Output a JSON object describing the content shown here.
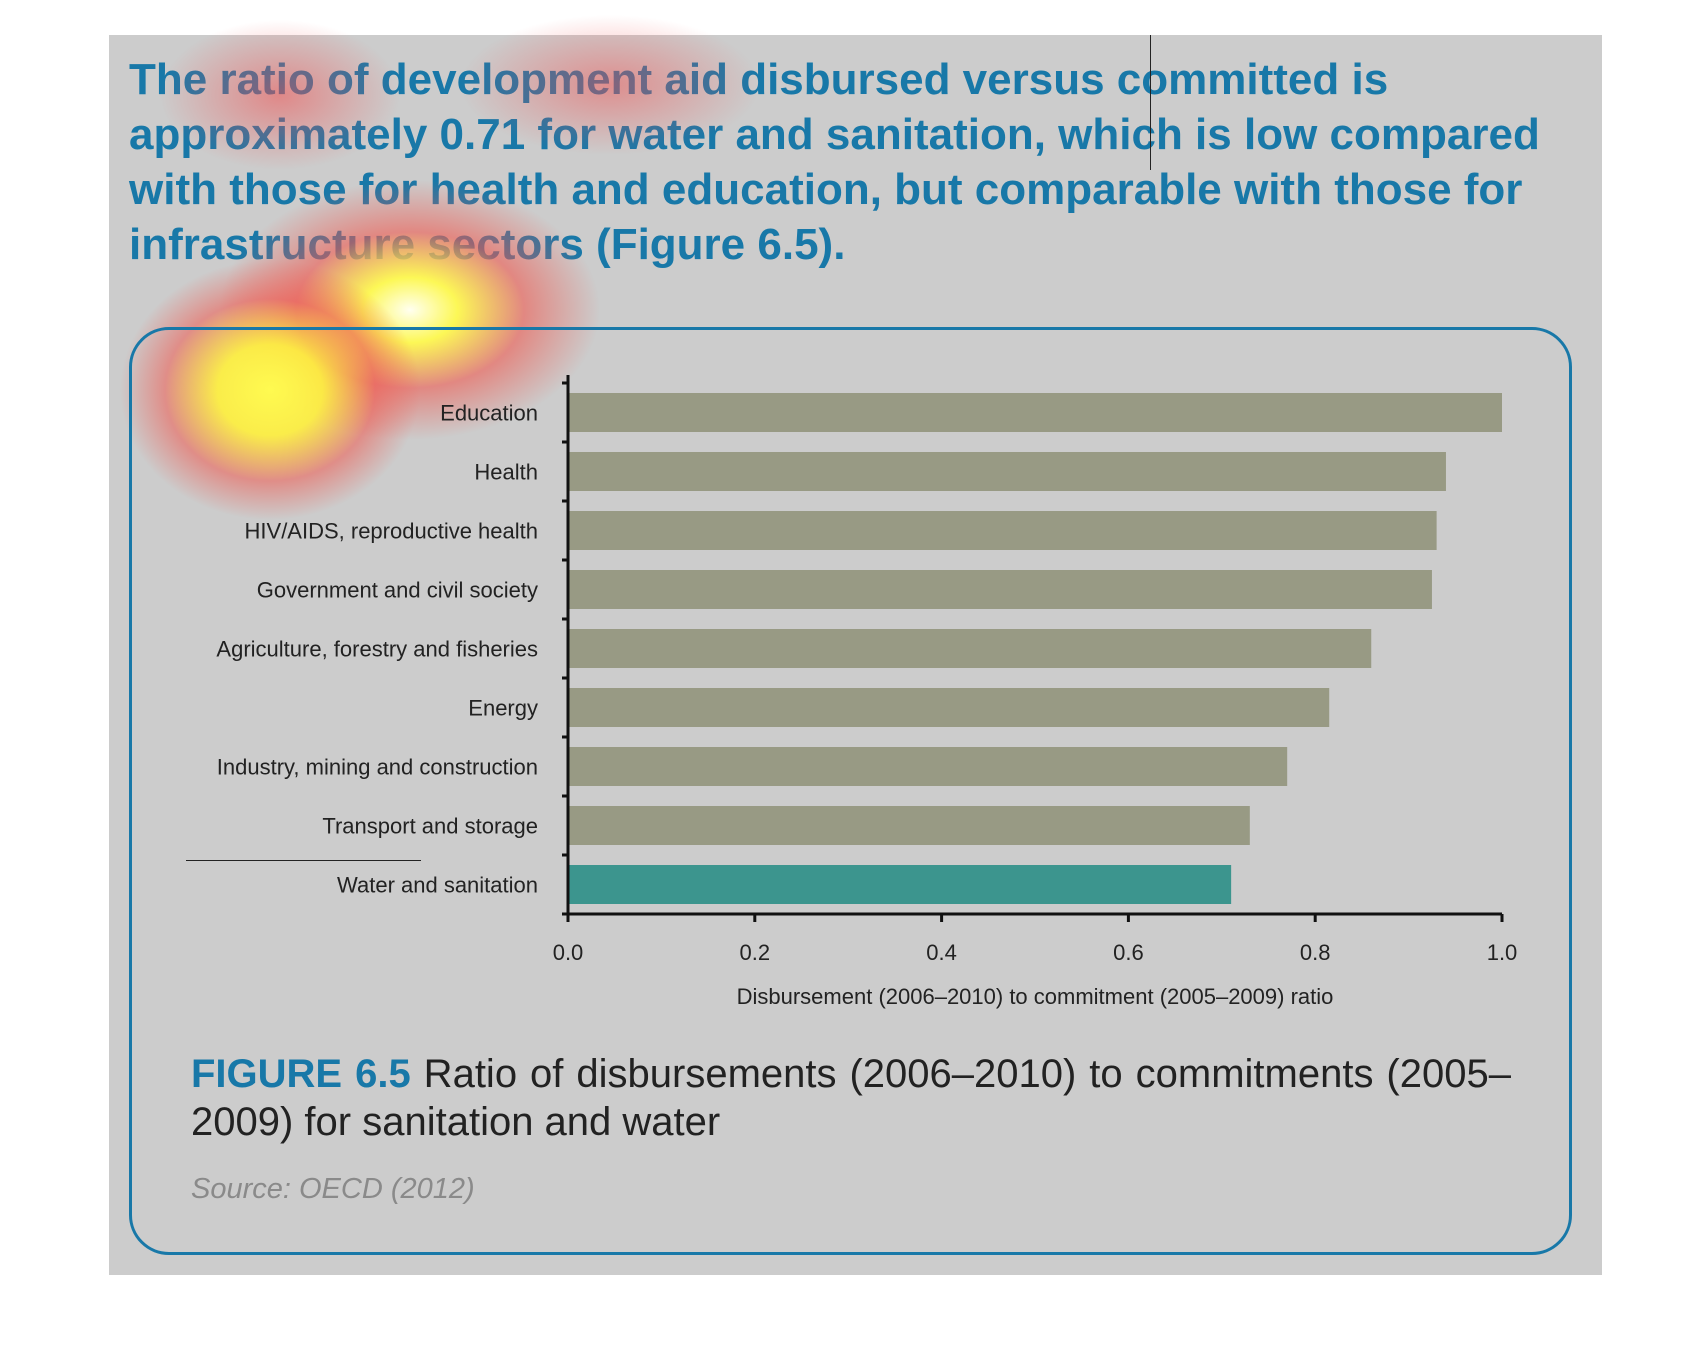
{
  "lead_text": "The ratio of development aid disbursed versus committed is approximately 0.71 for water and sanitation, which is low compared with those for health and education, but comparable with those for infrastructure sectors (Figure 6.5).",
  "figure": {
    "label": "FIGURE 6.5",
    "caption": " Ratio of disbursements (2006–2010) to commitments (2005–2009) for sanitation and water",
    "source": "Source: OECD (2012)"
  },
  "colors": {
    "accent": "#1878a8",
    "bar": "#989a84",
    "highlight_bar": "#3c958e",
    "panel": "#cccccc"
  },
  "chart_data": {
    "type": "bar",
    "orientation": "horizontal",
    "categories": [
      "Education",
      "Health",
      "HIV/AIDS, reproductive health",
      "Government and civil society",
      "Agriculture, forestry and fisheries",
      "Energy",
      "Industry, mining and construction",
      "Transport and storage",
      "Water and sanitation"
    ],
    "values": [
      1.0,
      0.94,
      0.93,
      0.925,
      0.86,
      0.815,
      0.77,
      0.73,
      0.71
    ],
    "highlight_category": "Water and sanitation",
    "xlabel": "Disbursement (2006–2010) to commitment (2005–2009) ratio",
    "ylabel": "",
    "xlim": [
      0.0,
      1.0
    ],
    "xticks": [
      "0.0",
      "0.2",
      "0.4",
      "0.6",
      "0.8",
      "1.0"
    ],
    "grid": false
  }
}
